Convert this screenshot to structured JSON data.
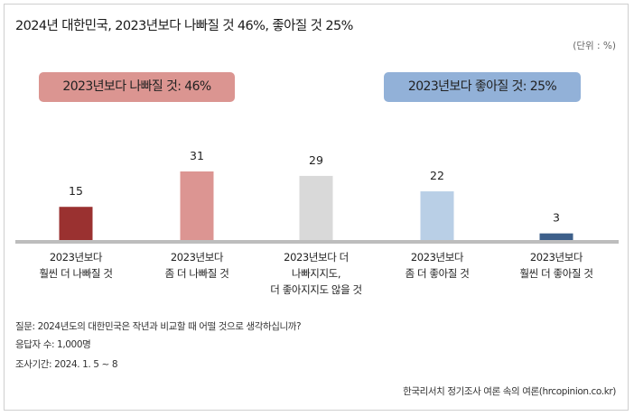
{
  "title": "2024년 대한민국, 2023년보다 나빠질 것 46%, 좋아질 것 25%",
  "unit": "(단위 : %)",
  "badges": {
    "worse": "2023년보다 나빠질 것: 46%",
    "better": "2023년보다 좋아질 것: 25%"
  },
  "chart_data": {
    "type": "bar",
    "categories": [
      [
        "2023년보다",
        "훨씬 더 나빠질 것"
      ],
      [
        "2023년보다",
        "좀 더 나빠질 것"
      ],
      [
        "2023년보다 더",
        "나빠지지도,",
        "더 좋아지지도 않을 것"
      ],
      [
        "2023년보다",
        "좀 더 좋아질 것"
      ],
      [
        "2023년보다",
        "훨씬 더 좋아질 것"
      ]
    ],
    "values": [
      15,
      31,
      29,
      22,
      3
    ],
    "colors": [
      "#9a3130",
      "#dc9592",
      "#d9d9d9",
      "#b9cfe6",
      "#3d5f8a"
    ],
    "axis_color": "#bdbdbd"
  },
  "notes": {
    "question": "질문:  2024년도의 대한민국은 작년과 비교할 때 어떨 것으로 생각하십니까?",
    "respondents": "응답자 수: 1,000명",
    "period": "조사기간: 2024. 1. 5 ~ 8"
  },
  "source": "한국리서치 정기조사 여론 속의 여론(hrcopinion.co.kr)"
}
